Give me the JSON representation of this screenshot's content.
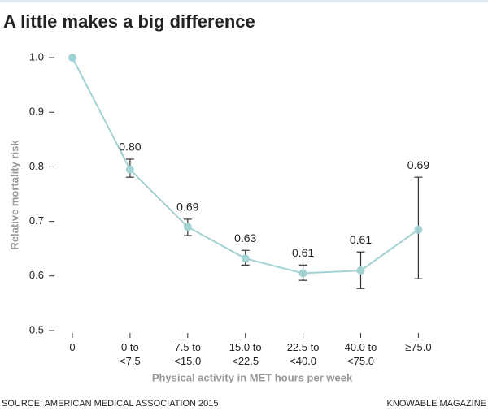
{
  "chart_data": {
    "type": "line",
    "title": "A little makes a big difference",
    "y_label": "Relative mortality risk",
    "x_label": "Physical activity in MET hours per week",
    "source": "SOURCE: AMERICAN MEDICAL ASSOCIATION 2015",
    "credit": "KNOWABLE MAGAZINE",
    "categories": [
      "0",
      "0 to <7.5",
      "7.5 to <15.0",
      "15.0 to <22.5",
      "22.5 to <40.0",
      "40.0 to <75.0",
      "≥75.0"
    ],
    "values": [
      1.0,
      0.795,
      0.69,
      0.632,
      0.605,
      0.61,
      0.685
    ],
    "value_labels": [
      null,
      "0.80",
      "0.69",
      "0.63",
      "0.61",
      "0.61",
      "0.69"
    ],
    "lower": [
      null,
      0.781,
      0.674,
      0.62,
      0.592,
      0.577,
      0.595
    ],
    "upper": [
      null,
      0.814,
      0.704,
      0.647,
      0.62,
      0.644,
      0.781
    ],
    "color": "#a3d2d3",
    "error_color": "#333333",
    "ylim": [
      0.5,
      1.0
    ],
    "yticks": [
      0.5,
      0.6,
      0.7,
      0.8,
      0.9,
      {
        "value": 1.0,
        "label": "1.0"
      }
    ],
    "grid": false
  }
}
